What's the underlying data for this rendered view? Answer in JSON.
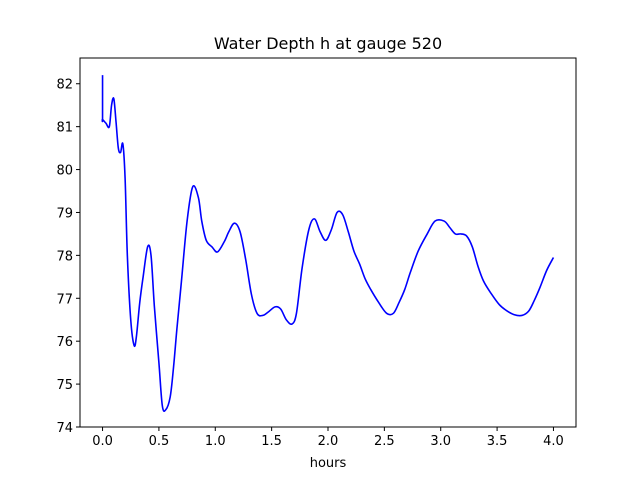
{
  "chart_data": {
    "type": "line",
    "title": "Water Depth h at gauge 520",
    "xlabel": "hours",
    "ylabel": "",
    "xlim": [
      -0.2,
      4.2
    ],
    "ylim": [
      74,
      82.6
    ],
    "xticks": [
      0.0,
      0.5,
      1.0,
      1.5,
      2.0,
      2.5,
      3.0,
      3.5,
      4.0
    ],
    "xtick_labels": [
      "0.0",
      "0.5",
      "1.0",
      "1.5",
      "2.0",
      "2.5",
      "3.0",
      "3.5",
      "4.0"
    ],
    "yticks": [
      74,
      75,
      76,
      77,
      78,
      79,
      80,
      81,
      82
    ],
    "ytick_labels": [
      "74",
      "75",
      "76",
      "77",
      "78",
      "79",
      "80",
      "81",
      "82"
    ],
    "grid": false,
    "series": [
      {
        "color": "#0000ff",
        "x": [
          0.0,
          0.0,
          0.0,
          0.03,
          0.06,
          0.08,
          0.1,
          0.12,
          0.14,
          0.16,
          0.18,
          0.2,
          0.22,
          0.25,
          0.28,
          0.3,
          0.33,
          0.36,
          0.4,
          0.43,
          0.46,
          0.5,
          0.53,
          0.56,
          0.6,
          0.63,
          0.66,
          0.7,
          0.75,
          0.8,
          0.85,
          0.88,
          0.92,
          0.97,
          1.02,
          1.08,
          1.12,
          1.17,
          1.22,
          1.27,
          1.32,
          1.37,
          1.42,
          1.47,
          1.53,
          1.58,
          1.63,
          1.68,
          1.72,
          1.77,
          1.83,
          1.88,
          1.93,
          1.98,
          2.03,
          2.08,
          2.13,
          2.18,
          2.23,
          2.28,
          2.33,
          2.38,
          2.45,
          2.52,
          2.58,
          2.63,
          2.68,
          2.73,
          2.8,
          2.88,
          2.95,
          3.03,
          3.08,
          3.13,
          3.18,
          3.23,
          3.28,
          3.33,
          3.38,
          3.45,
          3.52,
          3.58,
          3.65,
          3.72,
          3.78,
          3.83,
          3.88,
          3.94,
          4.0
        ],
        "y": [
          82.2,
          81.2,
          81.17,
          81.08,
          81.0,
          81.5,
          81.65,
          81.1,
          80.5,
          80.4,
          80.6,
          79.8,
          78.0,
          76.5,
          75.9,
          76.1,
          76.9,
          77.5,
          78.2,
          78.0,
          76.8,
          75.5,
          74.5,
          74.4,
          74.7,
          75.4,
          76.3,
          77.4,
          78.8,
          79.6,
          79.35,
          78.8,
          78.35,
          78.2,
          78.08,
          78.32,
          78.55,
          78.75,
          78.55,
          77.9,
          77.1,
          76.65,
          76.6,
          76.68,
          76.8,
          76.75,
          76.5,
          76.4,
          76.65,
          77.7,
          78.6,
          78.85,
          78.55,
          78.35,
          78.6,
          79.0,
          78.95,
          78.55,
          78.1,
          77.8,
          77.45,
          77.2,
          76.9,
          76.65,
          76.65,
          76.9,
          77.2,
          77.6,
          78.1,
          78.5,
          78.8,
          78.8,
          78.65,
          78.5,
          78.5,
          78.45,
          78.2,
          77.75,
          77.4,
          77.1,
          76.85,
          76.72,
          76.62,
          76.6,
          76.7,
          76.95,
          77.25,
          77.65,
          77.95
        ]
      }
    ]
  }
}
